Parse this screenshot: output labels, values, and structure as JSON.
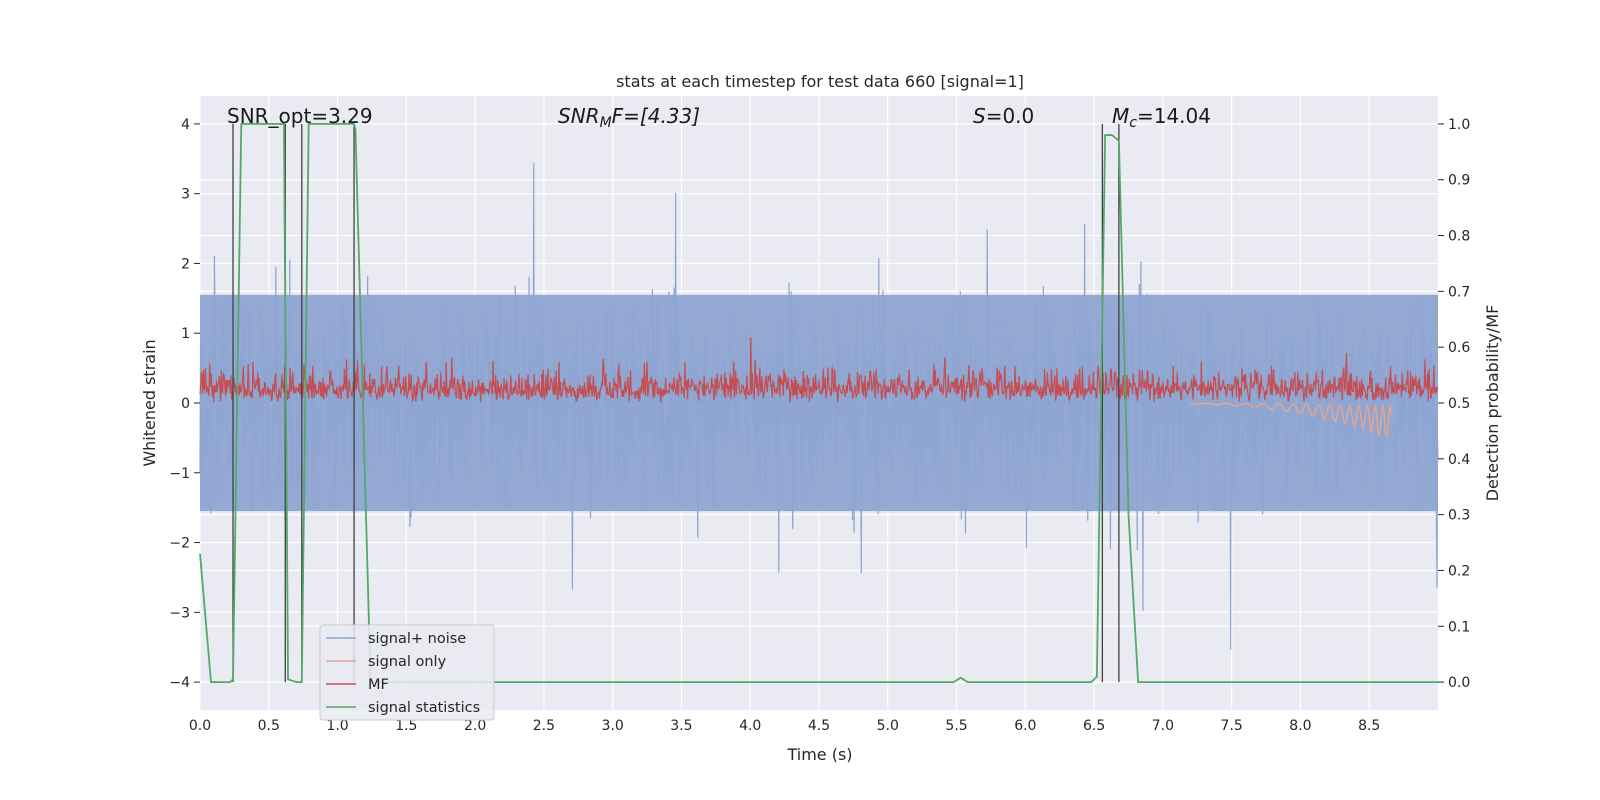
{
  "chart_data": {
    "type": "line",
    "title": "stats at each timestep for test data 660 [signal=1]",
    "xlabel": "Time (s)",
    "ylabel": "Whitened strain",
    "y2label": "Detection probability/MF",
    "xlim": [
      0.0,
      9.0
    ],
    "ylim": [
      -4.4,
      4.4
    ],
    "y2lim": [
      -0.05,
      1.05
    ],
    "xticks": [
      "0.0",
      "0.5",
      "1.0",
      "1.5",
      "2.0",
      "2.5",
      "3.0",
      "3.5",
      "4.0",
      "4.5",
      "5.0",
      "5.5",
      "6.0",
      "6.5",
      "7.0",
      "7.5",
      "8.0",
      "8.5"
    ],
    "xtick_values": [
      0.0,
      0.5,
      1.0,
      1.5,
      2.0,
      2.5,
      3.0,
      3.5,
      4.0,
      4.5,
      5.0,
      5.5,
      6.0,
      6.5,
      7.0,
      7.5,
      8.0,
      8.5
    ],
    "yticks": [
      "−4",
      "−3",
      "−2",
      "−1",
      "0",
      "1",
      "2",
      "3",
      "4"
    ],
    "ytick_values": [
      -4,
      -3,
      -2,
      -1,
      0,
      1,
      2,
      3,
      4
    ],
    "y2ticks": [
      "0.0",
      "0.1",
      "0.2",
      "0.3",
      "0.4",
      "0.5",
      "0.6",
      "0.7",
      "0.8",
      "0.9",
      "1.0"
    ],
    "y2tick_values": [
      0.0,
      0.1,
      0.2,
      0.3,
      0.4,
      0.5,
      0.6,
      0.7,
      0.8,
      0.9,
      1.0
    ],
    "annotations": {
      "snr_opt": "SNR_opt=3.29",
      "snr_mf_main": "SNR",
      "snr_mf_sub": "M",
      "snr_mf_rest": "F=[4.33]",
      "s_main": "S",
      "s_rest": "=0.0",
      "mc_main": "M",
      "mc_sub": "c",
      "mc_rest": "=14.04"
    },
    "series": [
      {
        "name": "signal+ noise",
        "color": "#8ea5d1",
        "description": "whitened noise band, roughly ±1.6 with spikes to ±3.7 across 0–9 s"
      },
      {
        "name": "signal only",
        "color": "#e8a48c",
        "description": "chirp growing from ~0 to ~-0.5 between 7.3 s and 8.65 s"
      },
      {
        "name": "MF",
        "color": "#c44e52",
        "description": "matched filter output fluctuating between 0.5 and ~0.62 on right axis"
      },
      {
        "name": "signal statistics",
        "color": "#55a868",
        "axis": "right",
        "x": [
          0.0,
          0.08,
          0.22,
          0.24,
          0.3,
          0.61,
          0.64,
          0.7,
          0.74,
          0.79,
          1.12,
          1.13,
          1.24,
          5.48,
          5.53,
          5.58,
          6.48,
          6.52,
          6.58,
          6.63,
          6.68,
          6.75,
          6.82,
          9.0
        ],
        "values": [
          0.23,
          0.0,
          0.0,
          0.005,
          1.0,
          1.0,
          0.005,
          0.0,
          0.0,
          1.0,
          1.0,
          0.99,
          0.0,
          0.0,
          0.008,
          0.0,
          0.0,
          0.01,
          0.98,
          0.98,
          0.97,
          0.3,
          0.0,
          0.0
        ]
      }
    ],
    "event_markers_x": [
      0.24,
      0.62,
      0.74,
      1.12,
      6.56,
      6.68
    ],
    "legend": {
      "position": "lower-left",
      "entries": [
        "signal+ noise",
        "signal only",
        "MF",
        "signal statistics"
      ]
    },
    "colors": {
      "background": "#eaeaf2",
      "grid": "#ffffff",
      "marker_line": "#404040"
    }
  }
}
